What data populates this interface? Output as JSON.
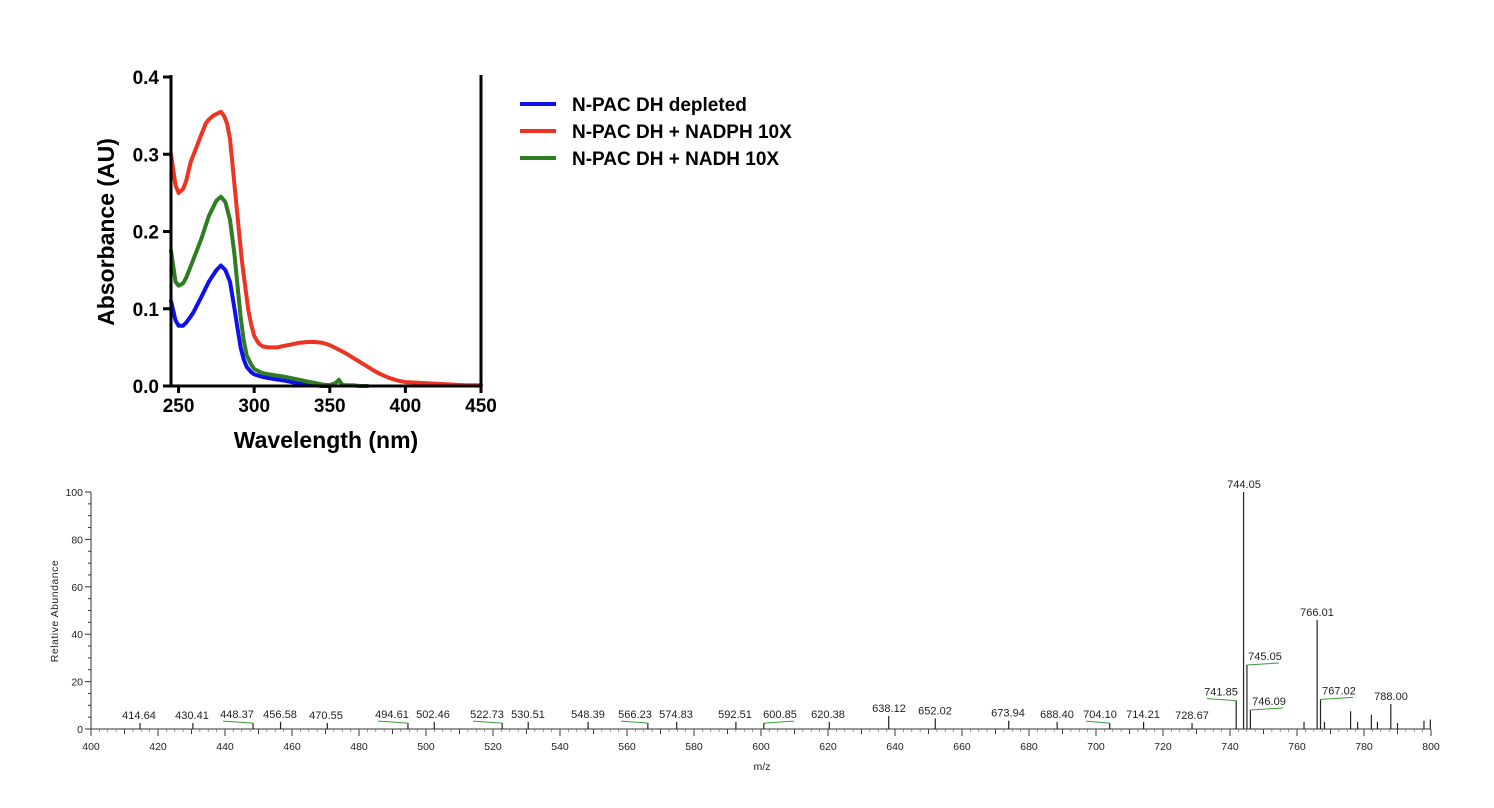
{
  "chart_data": [
    {
      "type": "line",
      "xlabel": "Wavelength (nm)",
      "ylabel": "Absorbance (AU)",
      "xlim": [
        245,
        450
      ],
      "ylim": [
        0,
        0.4
      ],
      "xticks": [
        250,
        300,
        350,
        400,
        450
      ],
      "yticks": [
        "0.0",
        "0.1",
        "0.2",
        "0.3",
        "0.4"
      ],
      "legend_position": "right",
      "grid": false,
      "series": [
        {
          "name": "N-PAC DH depleted",
          "color": "#1010ee",
          "x": [
            245,
            248,
            250,
            253,
            255,
            258,
            260,
            265,
            270,
            275,
            278,
            281,
            284,
            287,
            289,
            291,
            293,
            295,
            298,
            300,
            305,
            310,
            320,
            330,
            335,
            340,
            345,
            350
          ],
          "y": [
            0.11,
            0.085,
            0.078,
            0.078,
            0.082,
            0.09,
            0.096,
            0.115,
            0.135,
            0.15,
            0.156,
            0.15,
            0.135,
            0.1,
            0.075,
            0.05,
            0.035,
            0.025,
            0.018,
            0.015,
            0.012,
            0.01,
            0.007,
            0.003,
            0.002,
            0.001,
            0.0,
            0.0
          ]
        },
        {
          "name": "N-PAC DH + NADPH 10X",
          "color": "#ee3322",
          "x": [
            245,
            248,
            250,
            253,
            255,
            258,
            260,
            263,
            265,
            268,
            270,
            273,
            275,
            278,
            280,
            282,
            284,
            286,
            288,
            290,
            292,
            294,
            296,
            298,
            300,
            303,
            306,
            310,
            315,
            320,
            325,
            330,
            335,
            340,
            345,
            350,
            355,
            360,
            365,
            370,
            375,
            380,
            385,
            390,
            395,
            400,
            410,
            420,
            430,
            440,
            450
          ],
          "y": [
            0.3,
            0.26,
            0.25,
            0.255,
            0.265,
            0.29,
            0.3,
            0.315,
            0.325,
            0.34,
            0.345,
            0.35,
            0.352,
            0.355,
            0.35,
            0.34,
            0.32,
            0.28,
            0.24,
            0.2,
            0.16,
            0.13,
            0.1,
            0.08,
            0.065,
            0.055,
            0.051,
            0.05,
            0.05,
            0.052,
            0.054,
            0.056,
            0.057,
            0.057,
            0.056,
            0.053,
            0.048,
            0.043,
            0.037,
            0.031,
            0.025,
            0.019,
            0.014,
            0.01,
            0.007,
            0.005,
            0.004,
            0.003,
            0.002,
            0.001,
            0.001
          ]
        },
        {
          "name": "N-PAC DH + NADH 10X",
          "color": "#2e7d22",
          "x": [
            245,
            248,
            250,
            253,
            255,
            258,
            260,
            265,
            270,
            275,
            278,
            281,
            284,
            287,
            289,
            291,
            293,
            295,
            298,
            300,
            305,
            310,
            320,
            330,
            335,
            340,
            345,
            350,
            354,
            356,
            358,
            360,
            365,
            370,
            375
          ],
          "y": [
            0.175,
            0.135,
            0.13,
            0.133,
            0.14,
            0.155,
            0.165,
            0.19,
            0.22,
            0.24,
            0.245,
            0.238,
            0.215,
            0.17,
            0.13,
            0.09,
            0.06,
            0.04,
            0.028,
            0.022,
            0.017,
            0.015,
            0.012,
            0.008,
            0.006,
            0.004,
            0.002,
            0.001,
            0.004,
            0.008,
            0.002,
            0.001,
            0.001,
            0.0,
            0.0
          ]
        }
      ]
    },
    {
      "type": "bar",
      "xlabel": "m/z",
      "ylabel": "Relative Abundance",
      "xlim": [
        400,
        800
      ],
      "ylim": [
        0,
        100
      ],
      "xticks": [
        400,
        420,
        440,
        460,
        480,
        500,
        520,
        540,
        560,
        580,
        600,
        620,
        640,
        660,
        680,
        700,
        720,
        740,
        760,
        780,
        800
      ],
      "yticks": [
        0,
        20,
        40,
        60,
        80,
        100
      ],
      "peaks": [
        {
          "mz": 414.64,
          "label": "414.64",
          "intensity": 2.5
        },
        {
          "mz": 430.41,
          "label": "430.41",
          "intensity": 2.5
        },
        {
          "mz": 448.37,
          "label": "448.37",
          "intensity": 2.5,
          "leader": true
        },
        {
          "mz": 456.58,
          "label": "456.58",
          "intensity": 3
        },
        {
          "mz": 470.55,
          "label": "470.55",
          "intensity": 2.5
        },
        {
          "mz": 494.61,
          "label": "494.61",
          "intensity": 2.5,
          "leader": true
        },
        {
          "mz": 502.46,
          "label": "502.46",
          "intensity": 3
        },
        {
          "mz": 522.73,
          "label": "522.73",
          "intensity": 2.5,
          "leader": true
        },
        {
          "mz": 530.51,
          "label": "530.51",
          "intensity": 3
        },
        {
          "mz": 548.39,
          "label": "548.39",
          "intensity": 3
        },
        {
          "mz": 566.23,
          "label": "566.23",
          "intensity": 2.5,
          "leader": true
        },
        {
          "mz": 574.83,
          "label": "574.83",
          "intensity": 3
        },
        {
          "mz": 592.51,
          "label": "592.51",
          "intensity": 3
        },
        {
          "mz": 600.85,
          "label": "600.85",
          "intensity": 2.5,
          "leader": true
        },
        {
          "mz": 620.38,
          "label": "620.38",
          "intensity": 3
        },
        {
          "mz": 638.12,
          "label": "638.12",
          "intensity": 5.5
        },
        {
          "mz": 652.02,
          "label": "652.02",
          "intensity": 4.5
        },
        {
          "mz": 673.94,
          "label": "673.94",
          "intensity": 3.5
        },
        {
          "mz": 688.4,
          "label": "688.40",
          "intensity": 3
        },
        {
          "mz": 704.1,
          "label": "704.10",
          "intensity": 2.5,
          "leader": true
        },
        {
          "mz": 714.21,
          "label": "714.21",
          "intensity": 3
        },
        {
          "mz": 728.67,
          "label": "728.67",
          "intensity": 2.5
        },
        {
          "mz": 741.85,
          "label": "741.85",
          "intensity": 12,
          "leader": true
        },
        {
          "mz": 744.05,
          "label": "744.05",
          "intensity": 100
        },
        {
          "mz": 745.05,
          "label": "745.05",
          "intensity": 27,
          "leader": true
        },
        {
          "mz": 746.09,
          "label": "746.09",
          "intensity": 8,
          "leader": true
        },
        {
          "mz": 766.01,
          "label": "766.01",
          "intensity": 46
        },
        {
          "mz": 767.02,
          "label": "767.02",
          "intensity": 12.5,
          "leader": true
        },
        {
          "mz": 788.0,
          "label": "788.00",
          "intensity": 10.5
        },
        {
          "mz": 762.1,
          "intensity": 3
        },
        {
          "mz": 768.2,
          "intensity": 3
        },
        {
          "mz": 776.0,
          "intensity": 7.5
        },
        {
          "mz": 778.1,
          "intensity": 3
        },
        {
          "mz": 782.2,
          "intensity": 6
        },
        {
          "mz": 784.0,
          "intensity": 3
        },
        {
          "mz": 790.0,
          "intensity": 2.5
        },
        {
          "mz": 797.9,
          "intensity": 3.5
        },
        {
          "mz": 799.8,
          "intensity": 4
        }
      ]
    }
  ]
}
